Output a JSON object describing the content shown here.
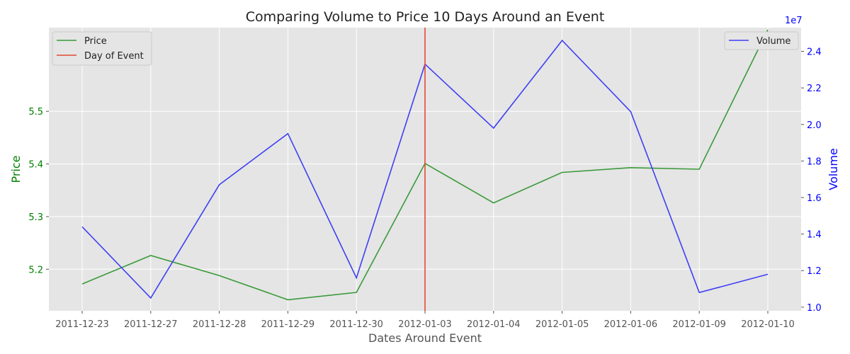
{
  "chart_data": {
    "type": "line",
    "title": "Comparing Volume to Price 10 Days Around an Event",
    "xlabel": "Dates Around Event",
    "categories": [
      "2011-12-23",
      "2011-12-27",
      "2011-12-28",
      "2011-12-29",
      "2011-12-30",
      "2012-01-03",
      "2012-01-04",
      "2012-01-05",
      "2012-01-06",
      "2012-01-09",
      "2012-01-10"
    ],
    "price_axis": {
      "label": "Price",
      "ylim": [
        5.121,
        5.659
      ],
      "ticks": [
        5.2,
        5.3,
        5.4,
        5.5
      ],
      "tick_labels": [
        "5.2",
        "5.3",
        "5.4",
        "5.5"
      ],
      "color": "#008000"
    },
    "volume_axis": {
      "label": "Volume",
      "ylim": [
        9800000,
        25300000
      ],
      "ticks": [
        10000000,
        12000000,
        14000000,
        16000000,
        18000000,
        20000000,
        22000000,
        24000000
      ],
      "tick_labels": [
        "1.0",
        "1.2",
        "1.4",
        "1.6",
        "1.8",
        "2.0",
        "2.2",
        "2.4"
      ],
      "offset_label": "1e7",
      "color": "#0000ff"
    },
    "series": [
      {
        "name": "Price",
        "axis": "left",
        "color": "#3a9a3a",
        "values": [
          5.172,
          5.226,
          5.188,
          5.142,
          5.156,
          5.401,
          5.326,
          5.384,
          5.393,
          5.39,
          5.655
        ]
      },
      {
        "name": "Volume",
        "axis": "right",
        "color": "#3f3ff5",
        "values": [
          14400000,
          10500000,
          16700000,
          19500000,
          11600000,
          23300000,
          19800000,
          24600000,
          20700000,
          10800000,
          11800000
        ]
      }
    ],
    "event": {
      "name": "Day of Event",
      "category": "2012-01-03",
      "color": "#e24a33"
    },
    "legends": {
      "left": [
        "Price",
        "Day of Event"
      ],
      "right": [
        "Volume"
      ],
      "left_placement": "top-left",
      "right_placement": "top-right"
    },
    "grid": true,
    "background": "#e5e5e5"
  }
}
